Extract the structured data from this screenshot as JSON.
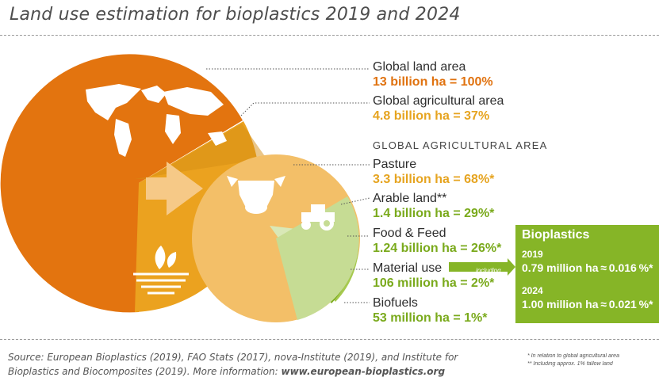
{
  "title": "Land use estimation for bioplastics 2019 and 2024",
  "colors": {
    "global_land": "#e3740f",
    "agricultural": "#eba21f",
    "pasture": "#f3bf68",
    "arable": "#c6dc94",
    "food_feed": "#d9e8b7",
    "material": "#7aaa1c",
    "biofuels": "#a6c94f",
    "bioplastics_box": "#86b527"
  },
  "icons": [
    "world-map-icon",
    "field-icon",
    "cow-icon",
    "tractor-icon",
    "arrow-icon"
  ],
  "labels": {
    "global_land_name": "Global land area",
    "global_land_value": "13 billion ha = 100%",
    "agri_name": "Global agricultural area",
    "agri_value": "4.8 billion ha = 37%",
    "section_heading": "GLOBAL AGRICULTURAL AREA",
    "pasture_name": "Pasture",
    "pasture_value": "3.3 billion ha = 68%*",
    "arable_name": "Arable land**",
    "arable_value": "1.4 billion ha = 29%*",
    "food_name": "Food & Feed",
    "food_value": "1.24 billion ha = 26%*",
    "material_name": "Material use",
    "material_value": "106 million ha = 2%*",
    "including": "including",
    "biofuels_name": "Biofuels",
    "biofuels_value": "53 million ha = 1%*"
  },
  "bioplastics": {
    "title": "Bioplastics",
    "year1": "2019",
    "value1": "0.79 million ha ≈ 0.016 %*",
    "year2": "2024",
    "value2": "1.00 million ha ≈ 0.021 %*"
  },
  "source": {
    "text": "Source: European Bioplastics (2019), FAO Stats (2017), nova-Institute (2019), and Institute for Bioplastics and Biocomposites (2019). More information:",
    "link": "www.european-bioplastics.org"
  },
  "footnotes": {
    "star": "* In relation to global agricultural area",
    "double_star": "** Including approx. 1% fallow land"
  },
  "chart_data": {
    "type": "pie",
    "title": "Land use estimation for bioplastics 2019 and 2024",
    "unit": "ha",
    "global_land_area": {
      "label": "Global land area",
      "value_billion_ha": 13,
      "percent": 100
    },
    "global_agricultural_area": {
      "label": "Global agricultural area",
      "value_billion_ha": 4.8,
      "percent_of_land": 37
    },
    "agricultural_breakdown": [
      {
        "label": "Pasture",
        "value_billion_ha": 3.3,
        "percent": 68
      },
      {
        "label": "Arable land",
        "value_billion_ha": 1.4,
        "percent": 29
      },
      {
        "label": "Food & Feed",
        "value_billion_ha": 1.24,
        "percent": 26
      },
      {
        "label": "Material use",
        "value_million_ha": 106,
        "percent": 2
      },
      {
        "label": "Biofuels",
        "value_million_ha": 53,
        "percent": 1
      }
    ],
    "bioplastics": [
      {
        "year": 2019,
        "value_million_ha": 0.79,
        "percent": 0.016
      },
      {
        "year": 2024,
        "value_million_ha": 1.0,
        "percent": 0.021
      }
    ]
  }
}
